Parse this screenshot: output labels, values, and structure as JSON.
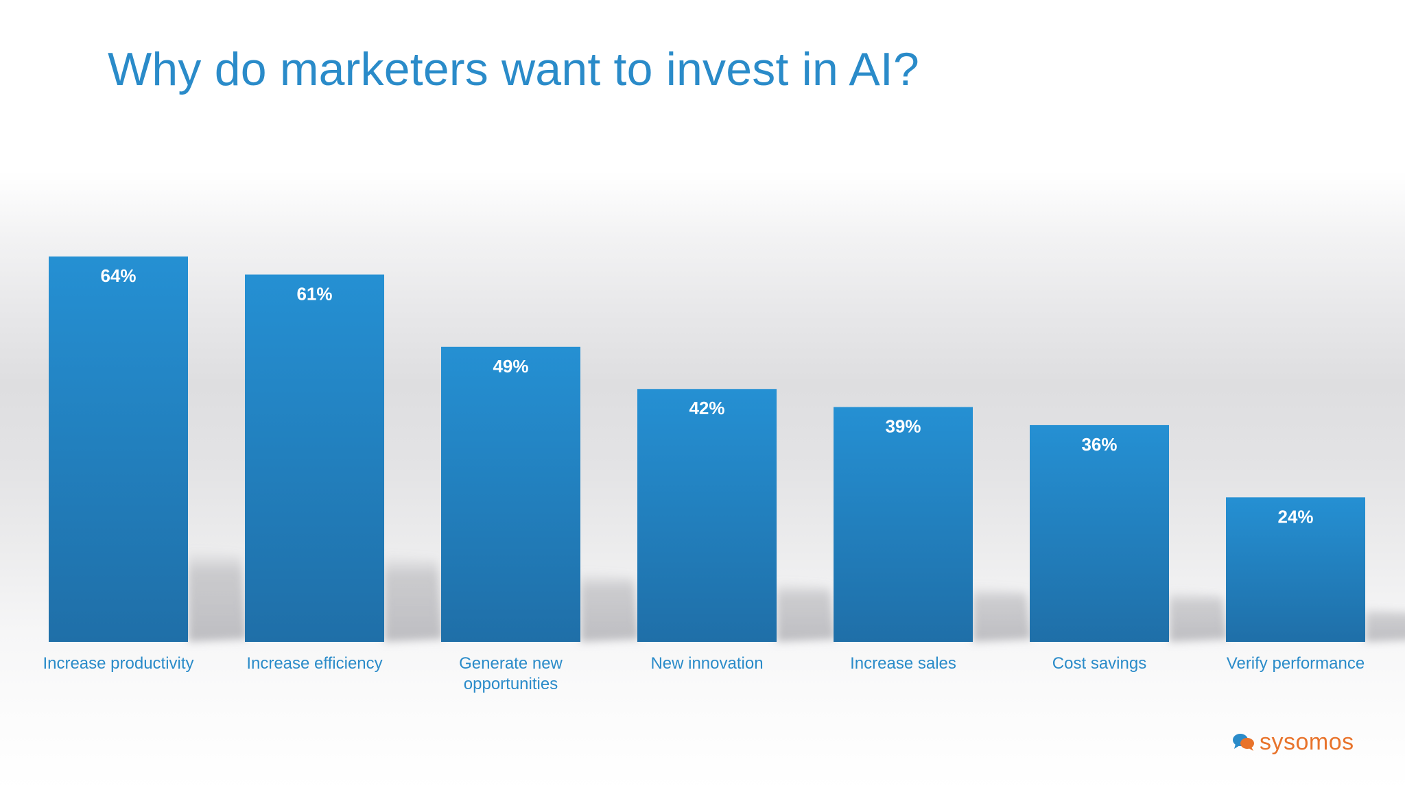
{
  "title": "Why do marketers want to invest in AI?",
  "chart_data": {
    "type": "bar",
    "title": "",
    "xlabel": "",
    "ylabel": "",
    "categories": [
      [
        "Increase productivity"
      ],
      [
        "Increase efficiency"
      ],
      [
        "Generate new",
        "opportunities"
      ],
      [
        "New innovation"
      ],
      [
        "Increase sales"
      ],
      [
        "Cost savings"
      ],
      [
        "Verify performance"
      ]
    ],
    "values": [
      64,
      61,
      49,
      42,
      39,
      36,
      24
    ],
    "value_labels": [
      "64%",
      "61%",
      "49%",
      "42%",
      "39%",
      "36%",
      "24%"
    ],
    "unit": "%",
    "ylim": [
      0,
      100
    ],
    "grid": false,
    "legend": "none",
    "colors": {
      "bar_top": "#2590d3",
      "bar_bottom": "#1f6fa8",
      "label": "#2a8bc9",
      "value_label": "#ffffff"
    }
  },
  "brand": {
    "name": "sysomos",
    "icon": "speech-bubbles-icon",
    "color": "#e8732b"
  }
}
